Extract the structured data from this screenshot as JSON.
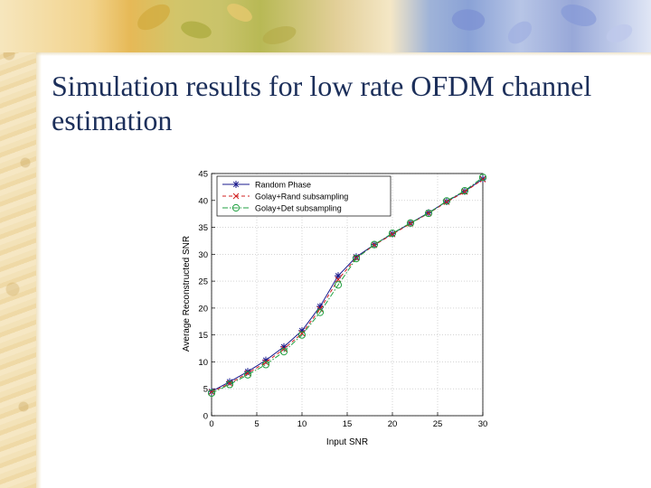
{
  "slide": {
    "title": "Simulation results for low rate OFDM channel estimation"
  },
  "theme": {
    "title_color": "#1c2f5a",
    "accent_gold": "#e6b957",
    "accent_blue": "#8aa2d6"
  },
  "chart_data": {
    "type": "line",
    "title": "",
    "xlabel": "Input SNR",
    "ylabel": "Average Reconstructed SNR",
    "xlim": [
      0,
      30
    ],
    "ylim": [
      0,
      45
    ],
    "xticks": [
      0,
      5,
      10,
      15,
      20,
      25,
      30
    ],
    "yticks": [
      0,
      5,
      10,
      15,
      20,
      25,
      30,
      35,
      40,
      45
    ],
    "grid": true,
    "legend_position": "top-left",
    "series": [
      {
        "name": "Random Phase",
        "color": "#1a1a8c",
        "marker": "asterisk",
        "dash": "solid",
        "x": [
          0,
          2,
          4,
          6,
          8,
          10,
          12,
          14,
          16,
          18,
          20,
          22,
          24,
          26,
          28,
          30
        ],
        "y": [
          4.5,
          6.3,
          8.2,
          10.3,
          12.8,
          15.8,
          20.3,
          26.0,
          29.5,
          31.8,
          33.8,
          35.8,
          37.7,
          39.8,
          41.7,
          44.0
        ]
      },
      {
        "name": "Golay+Rand subsampling",
        "color": "#d02020",
        "marker": "x",
        "dash": "dashed",
        "x": [
          0,
          2,
          4,
          6,
          8,
          10,
          12,
          14,
          16,
          18,
          20,
          22,
          24,
          26,
          28,
          30
        ],
        "y": [
          4.4,
          6.0,
          7.9,
          9.9,
          12.4,
          15.3,
          19.8,
          25.3,
          29.3,
          31.7,
          33.7,
          35.7,
          37.6,
          39.7,
          41.6,
          43.9
        ]
      },
      {
        "name": "Golay+Det subsampling",
        "color": "#20a040",
        "marker": "circle",
        "dash": "dashdot",
        "x": [
          0,
          2,
          4,
          6,
          8,
          10,
          12,
          14,
          16,
          18,
          20,
          22,
          24,
          26,
          28,
          30
        ],
        "y": [
          4.2,
          5.8,
          7.6,
          9.5,
          11.9,
          15.0,
          19.2,
          24.3,
          29.2,
          31.8,
          33.9,
          35.8,
          37.6,
          39.9,
          41.8,
          44.3
        ]
      }
    ]
  }
}
